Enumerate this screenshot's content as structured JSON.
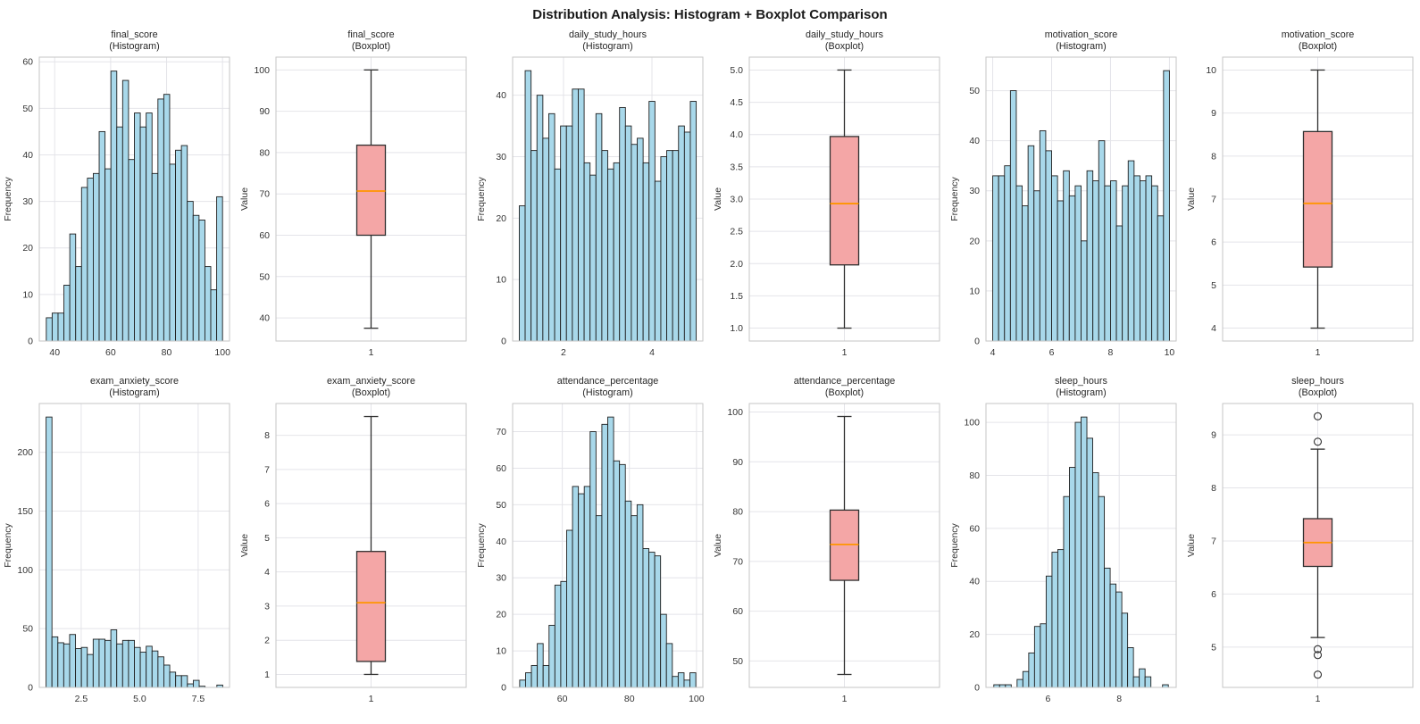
{
  "figure": {
    "title": "Distribution Analysis: Histogram + Boxplot Comparison"
  },
  "style": {
    "background": "#ffffff",
    "hist_fill": "#a8d8ea",
    "hist_edge": "#1f1f1f",
    "box_fill": "#f4a6a6",
    "box_edge": "#2f2f2f",
    "median_color": "#ff9500",
    "grid_color": "#e4e4e9",
    "spine_color": "#c6c6c6",
    "title_color": "#262626",
    "tick_color": "#333333"
  },
  "chart_data": [
    {
      "type": "bar",
      "variant": "histogram",
      "title": "final_score",
      "subtitle": "(Histogram)",
      "ylabel": "Frequency",
      "bin_start": 37,
      "bin_end": 100,
      "values": [
        5,
        6,
        6,
        12,
        23,
        16,
        33,
        35,
        36,
        45,
        37,
        58,
        46,
        56,
        39,
        49,
        46,
        49,
        36,
        52,
        53,
        38,
        41,
        42,
        30,
        27,
        26,
        16,
        11,
        31
      ],
      "xlim": [
        34.5,
        102.5
      ],
      "ylim": [
        0,
        61
      ],
      "xticks": [
        40,
        60,
        80,
        100
      ],
      "xtick_labels": [
        "40",
        "60",
        "80",
        "100"
      ],
      "yticks": [
        0,
        10,
        20,
        30,
        40,
        50,
        60
      ],
      "ytick_labels": [
        "0",
        "10",
        "20",
        "30",
        "40",
        "50",
        "60"
      ]
    },
    {
      "type": "boxplot",
      "variant": "boxplot",
      "title": "final_score",
      "subtitle": "(Boxplot)",
      "ylabel": "Value",
      "whislo": 37.5,
      "q1": 60.0,
      "med": 70.7,
      "q3": 81.8,
      "whishi": 100.0,
      "fliers": [],
      "ylim": [
        34.4,
        103.1
      ],
      "xtick_label": "1",
      "yticks": [
        40,
        50,
        60,
        70,
        80,
        90,
        100
      ],
      "ytick_labels": [
        "40",
        "50",
        "60",
        "70",
        "80",
        "90",
        "100"
      ]
    },
    {
      "type": "bar",
      "variant": "histogram",
      "title": "daily_study_hours",
      "subtitle": "(Histogram)",
      "ylabel": "Frequency",
      "bin_start": 1,
      "bin_end": 5,
      "values": [
        22,
        44,
        31,
        40,
        33,
        37,
        28,
        35,
        35,
        41,
        41,
        29,
        27,
        37,
        31,
        28,
        29,
        38,
        35,
        32,
        33,
        29,
        39,
        26,
        30,
        31,
        31,
        35,
        34,
        39
      ],
      "xlim": [
        0.85,
        5.15
      ],
      "ylim": [
        0,
        46.2
      ],
      "xticks": [
        2,
        4
      ],
      "xtick_labels": [
        "2",
        "4"
      ],
      "yticks": [
        0,
        10,
        20,
        30,
        40
      ],
      "ytick_labels": [
        "0",
        "10",
        "20",
        "30",
        "40"
      ]
    },
    {
      "type": "boxplot",
      "variant": "boxplot",
      "title": "daily_study_hours",
      "subtitle": "(Boxplot)",
      "ylabel": "Value",
      "whislo": 1.0,
      "q1": 1.98,
      "med": 2.93,
      "q3": 3.97,
      "whishi": 5.0,
      "fliers": [],
      "ylim": [
        0.8,
        5.2
      ],
      "xtick_label": "1",
      "yticks": [
        1.0,
        1.5,
        2.0,
        2.5,
        3.0,
        3.5,
        4.0,
        4.5,
        5.0
      ],
      "ytick_labels": [
        "1.0",
        "1.5",
        "2.0",
        "2.5",
        "3.0",
        "3.5",
        "4.0",
        "4.5",
        "5.0"
      ]
    },
    {
      "type": "bar",
      "variant": "histogram",
      "title": "motivation_score",
      "subtitle": "(Histogram)",
      "ylabel": "Frequency",
      "bin_start": 4,
      "bin_end": 10,
      "values": [
        33,
        33,
        35,
        50,
        31,
        27,
        39,
        30,
        42,
        38,
        33,
        28,
        34,
        29,
        31,
        20,
        34,
        32,
        40,
        31,
        32,
        23,
        31,
        36,
        33,
        32,
        33,
        31,
        25,
        54
      ],
      "xlim": [
        3.77,
        10.23
      ],
      "ylim": [
        0,
        56.7
      ],
      "xticks": [
        4,
        6,
        8,
        10
      ],
      "xtick_labels": [
        "4",
        "6",
        "8",
        "10"
      ],
      "yticks": [
        0,
        10,
        20,
        30,
        40,
        50
      ],
      "ytick_labels": [
        "0",
        "10",
        "20",
        "30",
        "40",
        "50"
      ]
    },
    {
      "type": "boxplot",
      "variant": "boxplot",
      "title": "motivation_score",
      "subtitle": "(Boxplot)",
      "ylabel": "Value",
      "whislo": 4.0,
      "q1": 5.42,
      "med": 6.9,
      "q3": 8.57,
      "whishi": 10.0,
      "fliers": [],
      "ylim": [
        3.7,
        10.3
      ],
      "xtick_label": "1",
      "yticks": [
        4,
        5,
        6,
        7,
        8,
        9,
        10
      ],
      "ytick_labels": [
        "4",
        "5",
        "6",
        "7",
        "8",
        "9",
        "10"
      ]
    },
    {
      "type": "bar",
      "variant": "histogram",
      "title": "exam_anxiety_score",
      "subtitle": "(Histogram)",
      "ylabel": "Frequency",
      "bin_start": 1,
      "bin_end": 8.55,
      "values": [
        230,
        43,
        38,
        37,
        45,
        33,
        34,
        28,
        41,
        41,
        40,
        49,
        37,
        40,
        40,
        34,
        30,
        35,
        31,
        26,
        19,
        13,
        10,
        10,
        3,
        6,
        1,
        0,
        0,
        2
      ],
      "xlim": [
        0.71,
        8.84
      ],
      "ylim": [
        0,
        241.5
      ],
      "xticks": [
        2.5,
        5.0,
        7.5
      ],
      "xtick_labels": [
        "2.5",
        "5.0",
        "7.5"
      ],
      "yticks": [
        0,
        50,
        100,
        150,
        200
      ],
      "ytick_labels": [
        "0",
        "50",
        "100",
        "150",
        "200"
      ]
    },
    {
      "type": "boxplot",
      "variant": "boxplot",
      "title": "exam_anxiety_score",
      "subtitle": "(Boxplot)",
      "ylabel": "Value",
      "whislo": 1.0,
      "q1": 1.38,
      "med": 3.1,
      "q3": 4.6,
      "whishi": 8.55,
      "fliers": [],
      "ylim": [
        0.62,
        8.93
      ],
      "xtick_label": "1",
      "yticks": [
        1,
        2,
        3,
        4,
        5,
        6,
        7,
        8
      ],
      "ytick_labels": [
        "1",
        "2",
        "3",
        "4",
        "5",
        "6",
        "7",
        "8"
      ]
    },
    {
      "type": "bar",
      "variant": "histogram",
      "title": "attendance_percentage",
      "subtitle": "(Histogram)",
      "ylabel": "Frequency",
      "bin_start": 47.3,
      "bin_end": 99.8,
      "values": [
        2,
        4,
        6,
        12,
        6,
        17,
        28,
        29,
        43,
        55,
        53,
        55,
        70,
        47,
        72,
        74,
        62,
        61,
        51,
        47,
        50,
        38,
        37,
        36,
        20,
        12,
        3,
        4,
        2,
        4
      ],
      "xlim": [
        45.2,
        101.9
      ],
      "ylim": [
        0,
        77.7
      ],
      "xticks": [
        60,
        80,
        100
      ],
      "xtick_labels": [
        "60",
        "80",
        "100"
      ],
      "yticks": [
        0,
        10,
        20,
        30,
        40,
        50,
        60,
        70
      ],
      "ytick_labels": [
        "0",
        "10",
        "20",
        "30",
        "40",
        "50",
        "60",
        "70"
      ]
    },
    {
      "type": "boxplot",
      "variant": "boxplot",
      "title": "attendance_percentage",
      "subtitle": "(Boxplot)",
      "ylabel": "Value",
      "whislo": 47.3,
      "q1": 66.2,
      "med": 73.4,
      "q3": 80.3,
      "whishi": 99.1,
      "fliers": [],
      "ylim": [
        44.7,
        101.7
      ],
      "xtick_label": "1",
      "yticks": [
        50,
        60,
        70,
        80,
        90,
        100
      ],
      "ytick_labels": [
        "50",
        "60",
        "70",
        "80",
        "90",
        "100"
      ]
    },
    {
      "type": "bar",
      "variant": "histogram",
      "title": "sleep_hours",
      "subtitle": "(Histogram)",
      "ylabel": "Frequency",
      "bin_start": 4.48,
      "bin_end": 9.38,
      "values": [
        1,
        1,
        1,
        0,
        3,
        6,
        13,
        23,
        24,
        42,
        51,
        52,
        72,
        83,
        100,
        102,
        94,
        81,
        72,
        45,
        39,
        36,
        28,
        15,
        4,
        7,
        4,
        0,
        0,
        1
      ],
      "xlim": [
        4.26,
        9.6
      ],
      "ylim": [
        0,
        107.1
      ],
      "xticks": [
        6,
        8
      ],
      "xtick_labels": [
        "6",
        "8"
      ],
      "yticks": [
        0,
        20,
        40,
        60,
        80,
        100
      ],
      "ytick_labels": [
        "0",
        "20",
        "40",
        "60",
        "80",
        "100"
      ]
    },
    {
      "type": "boxplot",
      "variant": "boxplot",
      "title": "sleep_hours",
      "subtitle": "(Boxplot)",
      "ylabel": "Value",
      "whislo": 5.18,
      "q1": 6.52,
      "med": 6.97,
      "q3": 7.42,
      "whishi": 8.73,
      "fliers": [
        9.35,
        8.87,
        4.96,
        4.85,
        4.48
      ],
      "ylim": [
        4.24,
        9.59
      ],
      "xtick_label": "1",
      "yticks": [
        5,
        6,
        7,
        8,
        9
      ],
      "ytick_labels": [
        "5",
        "6",
        "7",
        "8",
        "9"
      ]
    }
  ]
}
